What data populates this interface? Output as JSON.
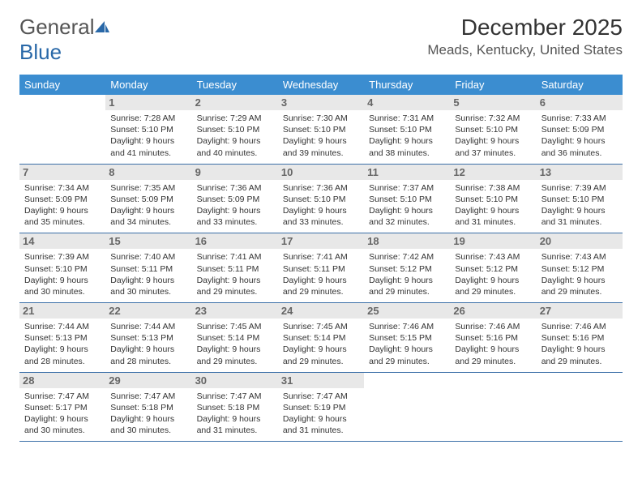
{
  "logo": {
    "part1": "General",
    "part2": "Blue"
  },
  "title": "December 2025",
  "location": "Meads, Kentucky, United States",
  "colors": {
    "header_bg": "#3b8dd0",
    "header_text": "#ffffff",
    "week_border": "#3b6fa8",
    "daynum_bg": "#e8e8e8",
    "daynum_color": "#666666",
    "body_text": "#333333",
    "logo_gray": "#555555",
    "logo_blue": "#2968a8"
  },
  "dayNames": [
    "Sunday",
    "Monday",
    "Tuesday",
    "Wednesday",
    "Thursday",
    "Friday",
    "Saturday"
  ],
  "weeks": [
    [
      {
        "empty": true
      },
      {
        "day": "1",
        "sunrise": "7:28 AM",
        "sunset": "5:10 PM",
        "daylight": "9 hours and 41 minutes."
      },
      {
        "day": "2",
        "sunrise": "7:29 AM",
        "sunset": "5:10 PM",
        "daylight": "9 hours and 40 minutes."
      },
      {
        "day": "3",
        "sunrise": "7:30 AM",
        "sunset": "5:10 PM",
        "daylight": "9 hours and 39 minutes."
      },
      {
        "day": "4",
        "sunrise": "7:31 AM",
        "sunset": "5:10 PM",
        "daylight": "9 hours and 38 minutes."
      },
      {
        "day": "5",
        "sunrise": "7:32 AM",
        "sunset": "5:10 PM",
        "daylight": "9 hours and 37 minutes."
      },
      {
        "day": "6",
        "sunrise": "7:33 AM",
        "sunset": "5:09 PM",
        "daylight": "9 hours and 36 minutes."
      }
    ],
    [
      {
        "day": "7",
        "sunrise": "7:34 AM",
        "sunset": "5:09 PM",
        "daylight": "9 hours and 35 minutes."
      },
      {
        "day": "8",
        "sunrise": "7:35 AM",
        "sunset": "5:09 PM",
        "daylight": "9 hours and 34 minutes."
      },
      {
        "day": "9",
        "sunrise": "7:36 AM",
        "sunset": "5:09 PM",
        "daylight": "9 hours and 33 minutes."
      },
      {
        "day": "10",
        "sunrise": "7:36 AM",
        "sunset": "5:10 PM",
        "daylight": "9 hours and 33 minutes."
      },
      {
        "day": "11",
        "sunrise": "7:37 AM",
        "sunset": "5:10 PM",
        "daylight": "9 hours and 32 minutes."
      },
      {
        "day": "12",
        "sunrise": "7:38 AM",
        "sunset": "5:10 PM",
        "daylight": "9 hours and 31 minutes."
      },
      {
        "day": "13",
        "sunrise": "7:39 AM",
        "sunset": "5:10 PM",
        "daylight": "9 hours and 31 minutes."
      }
    ],
    [
      {
        "day": "14",
        "sunrise": "7:39 AM",
        "sunset": "5:10 PM",
        "daylight": "9 hours and 30 minutes."
      },
      {
        "day": "15",
        "sunrise": "7:40 AM",
        "sunset": "5:11 PM",
        "daylight": "9 hours and 30 minutes."
      },
      {
        "day": "16",
        "sunrise": "7:41 AM",
        "sunset": "5:11 PM",
        "daylight": "9 hours and 29 minutes."
      },
      {
        "day": "17",
        "sunrise": "7:41 AM",
        "sunset": "5:11 PM",
        "daylight": "9 hours and 29 minutes."
      },
      {
        "day": "18",
        "sunrise": "7:42 AM",
        "sunset": "5:12 PM",
        "daylight": "9 hours and 29 minutes."
      },
      {
        "day": "19",
        "sunrise": "7:43 AM",
        "sunset": "5:12 PM",
        "daylight": "9 hours and 29 minutes."
      },
      {
        "day": "20",
        "sunrise": "7:43 AM",
        "sunset": "5:12 PM",
        "daylight": "9 hours and 29 minutes."
      }
    ],
    [
      {
        "day": "21",
        "sunrise": "7:44 AM",
        "sunset": "5:13 PM",
        "daylight": "9 hours and 28 minutes."
      },
      {
        "day": "22",
        "sunrise": "7:44 AM",
        "sunset": "5:13 PM",
        "daylight": "9 hours and 28 minutes."
      },
      {
        "day": "23",
        "sunrise": "7:45 AM",
        "sunset": "5:14 PM",
        "daylight": "9 hours and 29 minutes."
      },
      {
        "day": "24",
        "sunrise": "7:45 AM",
        "sunset": "5:14 PM",
        "daylight": "9 hours and 29 minutes."
      },
      {
        "day": "25",
        "sunrise": "7:46 AM",
        "sunset": "5:15 PM",
        "daylight": "9 hours and 29 minutes."
      },
      {
        "day": "26",
        "sunrise": "7:46 AM",
        "sunset": "5:16 PM",
        "daylight": "9 hours and 29 minutes."
      },
      {
        "day": "27",
        "sunrise": "7:46 AM",
        "sunset": "5:16 PM",
        "daylight": "9 hours and 29 minutes."
      }
    ],
    [
      {
        "day": "28",
        "sunrise": "7:47 AM",
        "sunset": "5:17 PM",
        "daylight": "9 hours and 30 minutes."
      },
      {
        "day": "29",
        "sunrise": "7:47 AM",
        "sunset": "5:18 PM",
        "daylight": "9 hours and 30 minutes."
      },
      {
        "day": "30",
        "sunrise": "7:47 AM",
        "sunset": "5:18 PM",
        "daylight": "9 hours and 31 minutes."
      },
      {
        "day": "31",
        "sunrise": "7:47 AM",
        "sunset": "5:19 PM",
        "daylight": "9 hours and 31 minutes."
      },
      {
        "empty": true
      },
      {
        "empty": true
      },
      {
        "empty": true
      }
    ]
  ],
  "labels": {
    "sunrise": "Sunrise:",
    "sunset": "Sunset:",
    "daylight": "Daylight:"
  }
}
